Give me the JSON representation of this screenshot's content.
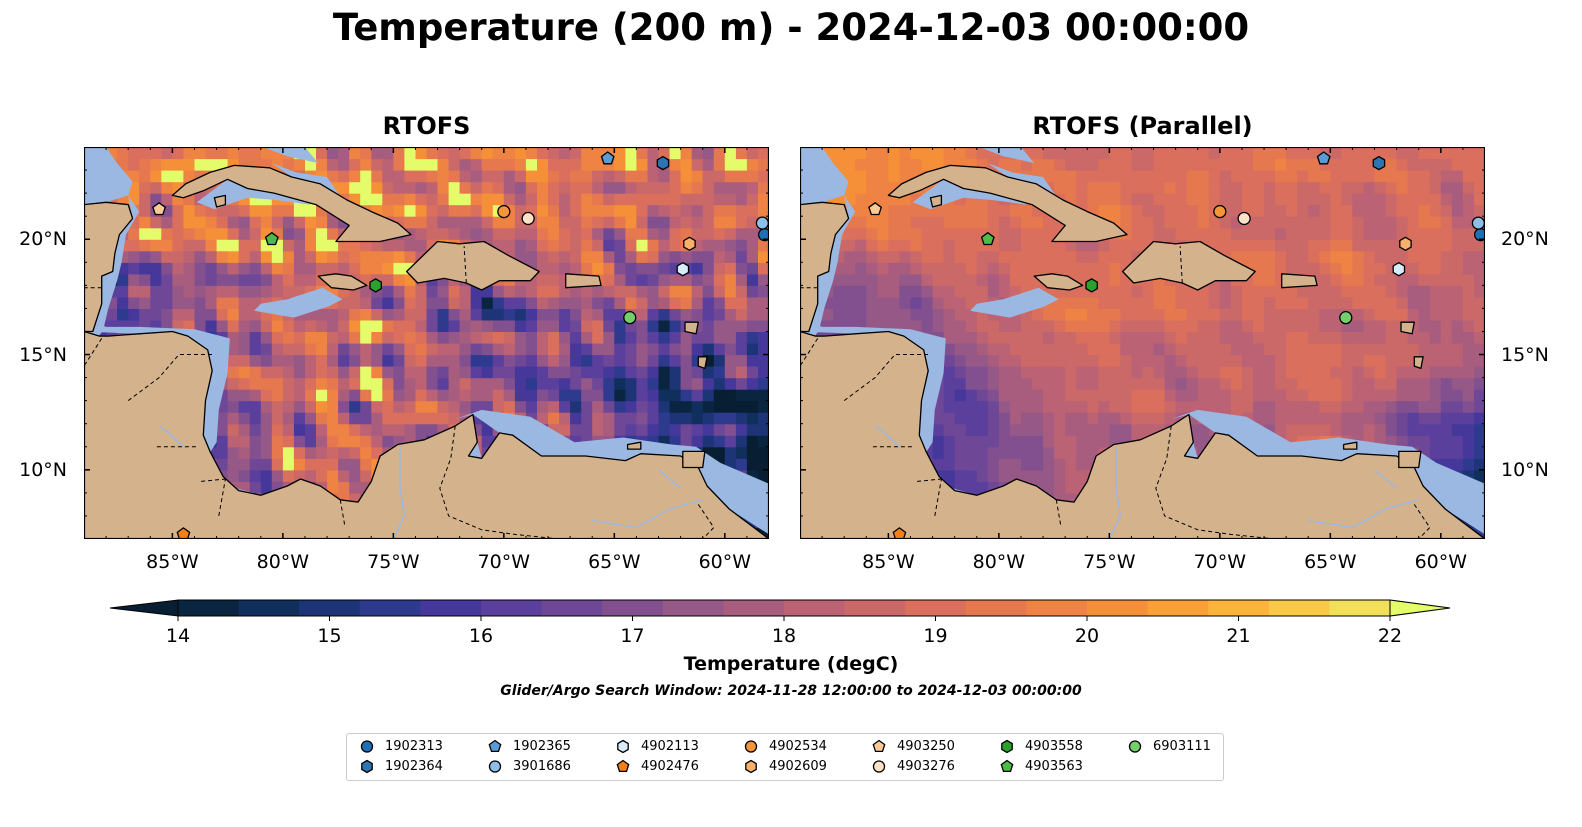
{
  "title": "Temperature (200 m) - 2024-12-03 00:00:00",
  "panels": [
    {
      "title": "RTOFS"
    },
    {
      "title": "RTOFS (Parallel)"
    }
  ],
  "axes": {
    "x_ticks": [
      "85°W",
      "80°W",
      "75°W",
      "70°W",
      "65°W",
      "60°W"
    ],
    "x_values": [
      -85,
      -80,
      -75,
      -70,
      -65,
      -60
    ],
    "y_ticks": [
      "20°N",
      "15°N",
      "10°N"
    ],
    "y_values": [
      20,
      15,
      10
    ],
    "lon_range": [
      -89,
      -58
    ],
    "lat_range": [
      7,
      24
    ]
  },
  "colorbar": {
    "label": "Temperature (degC)",
    "ticks": [
      "14",
      "15",
      "16",
      "17",
      "18",
      "19",
      "20",
      "21",
      "22"
    ],
    "tick_values": [
      14,
      15,
      16,
      17,
      18,
      19,
      20,
      21,
      22
    ],
    "range": [
      14,
      22
    ],
    "step": 0.5,
    "extend": "both",
    "colors": [
      "#0a2540",
      "#112f5c",
      "#1d3577",
      "#2e3a8e",
      "#45389a",
      "#5a3f9c",
      "#6e4897",
      "#82508f",
      "#965887",
      "#a95d7e",
      "#bb6274",
      "#cb6868",
      "#d96f5c",
      "#e5784f",
      "#ee8343",
      "#f59039",
      "#f9a036",
      "#fbb33b",
      "#f9c946",
      "#f3e05a"
    ],
    "under_color": "#081f33",
    "over_color": "#e4fb6a"
  },
  "search_window": "Glider/Argo Search Window: 2024-11-28 12:00:00 to 2024-12-03 00:00:00",
  "legend": [
    {
      "id": "1902313",
      "marker": "circle",
      "color": "#1f6fb4"
    },
    {
      "id": "1902364",
      "marker": "hexagon",
      "color": "#2d74b2"
    },
    {
      "id": "1902365",
      "marker": "pentagon",
      "color": "#5b9bd5"
    },
    {
      "id": "3901686",
      "marker": "circle",
      "color": "#8fbfe8"
    },
    {
      "id": "4902113",
      "marker": "hexagon",
      "color": "#d8ecfb"
    },
    {
      "id": "4902476",
      "marker": "pentagon",
      "color": "#f57f17"
    },
    {
      "id": "4902534",
      "marker": "circle",
      "color": "#f5953a"
    },
    {
      "id": "4902609",
      "marker": "hexagon",
      "color": "#f9b06a"
    },
    {
      "id": "4903250",
      "marker": "pentagon",
      "color": "#fac998"
    },
    {
      "id": "4903276",
      "marker": "circle",
      "color": "#fde2c8"
    },
    {
      "id": "4903558",
      "marker": "hexagon",
      "color": "#2ca02c"
    },
    {
      "id": "4903563",
      "marker": "pentagon",
      "color": "#4cbb47"
    },
    {
      "id": "6903111",
      "marker": "circle",
      "color": "#73cf6b"
    }
  ],
  "observations": [
    {
      "id": "1902313",
      "lon": -58.2,
      "lat": 20.2
    },
    {
      "id": "1902364",
      "lon": -62.8,
      "lat": 23.3
    },
    {
      "id": "1902365",
      "lon": -65.3,
      "lat": 23.5
    },
    {
      "id": "3901686",
      "lon": -58.3,
      "lat": 20.7
    },
    {
      "id": "4902113",
      "lon": -61.9,
      "lat": 18.7
    },
    {
      "id": "4902476",
      "lon": -84.5,
      "lat": 7.2
    },
    {
      "id": "4902534",
      "lon": -70.0,
      "lat": 21.2
    },
    {
      "id": "4902609",
      "lon": -61.6,
      "lat": 19.8
    },
    {
      "id": "4903250",
      "lon": -85.6,
      "lat": 21.3
    },
    {
      "id": "4903276",
      "lon": -68.9,
      "lat": 20.9
    },
    {
      "id": "4903558",
      "lon": -75.8,
      "lat": 18.0
    },
    {
      "id": "4903563",
      "lon": -80.5,
      "lat": 20.0
    },
    {
      "id": "6903111",
      "lon": -64.3,
      "lat": 16.6
    }
  ],
  "map_colors": {
    "land": "#d4b38c",
    "shelf": "#9bb8e2",
    "coast": "#000000"
  }
}
